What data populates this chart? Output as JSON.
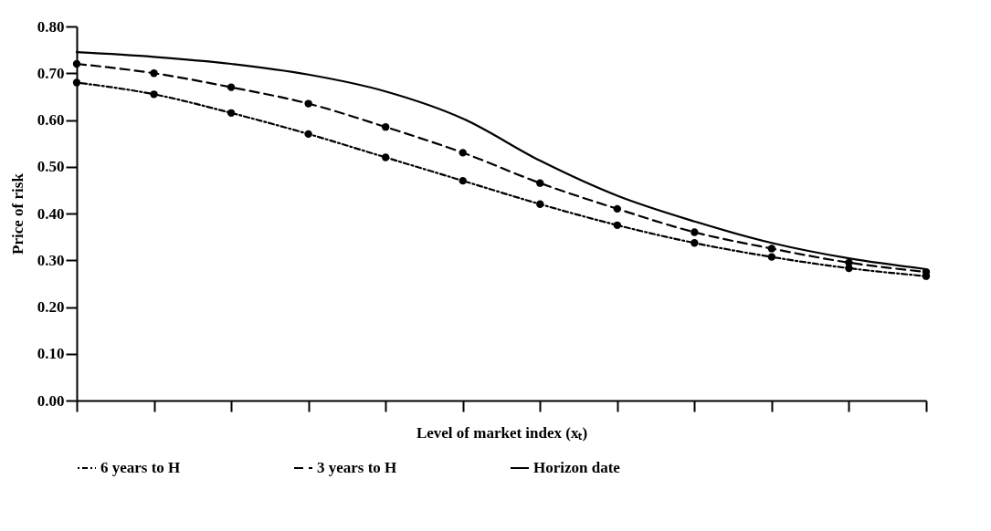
{
  "chart_data": {
    "type": "line",
    "xlabel": "Level of market index (xₜ)",
    "ylabel": "Price of risk",
    "categories": [
      null,
      null,
      null,
      null,
      null,
      null,
      null,
      null,
      null,
      null,
      null,
      null
    ],
    "series": [
      {
        "name": "6 years to H",
        "color": "#000000",
        "line_style": "dotted",
        "marker": "circle",
        "values": [
          0.68,
          0.655,
          0.615,
          0.57,
          0.52,
          0.47,
          0.42,
          0.375,
          0.337,
          0.307,
          0.283,
          0.266
        ]
      },
      {
        "name": "3 years to H",
        "color": "#000000",
        "line_style": "dashed",
        "marker": "circle",
        "values": [
          0.72,
          0.7,
          0.67,
          0.635,
          0.585,
          0.53,
          0.465,
          0.41,
          0.36,
          0.325,
          0.295,
          0.275
        ]
      },
      {
        "name": "Horizon date",
        "color": "#000000",
        "line_style": "solid",
        "marker": "none",
        "values": [
          0.745,
          0.735,
          0.72,
          0.697,
          0.661,
          0.603,
          0.513,
          0.438,
          0.383,
          0.337,
          0.304,
          0.281
        ]
      }
    ],
    "ylim": [
      0,
      0.8
    ],
    "yticks": [
      {
        "value": 0,
        "label": "0.00"
      },
      {
        "value": 0.1,
        "label": "0.10"
      },
      {
        "value": 0.2,
        "label": "0.20"
      },
      {
        "value": 0.3,
        "label": "0.30"
      },
      {
        "value": 0.4,
        "label": "0.40"
      },
      {
        "value": 0.5,
        "label": "0.50"
      },
      {
        "value": 0.6,
        "label": "0.60"
      },
      {
        "value": 0.7,
        "label": "0.70"
      },
      {
        "value": 0.8,
        "label": "0.80"
      }
    ],
    "tick_labels": "y",
    "grid": false,
    "legend": "bottom"
  }
}
